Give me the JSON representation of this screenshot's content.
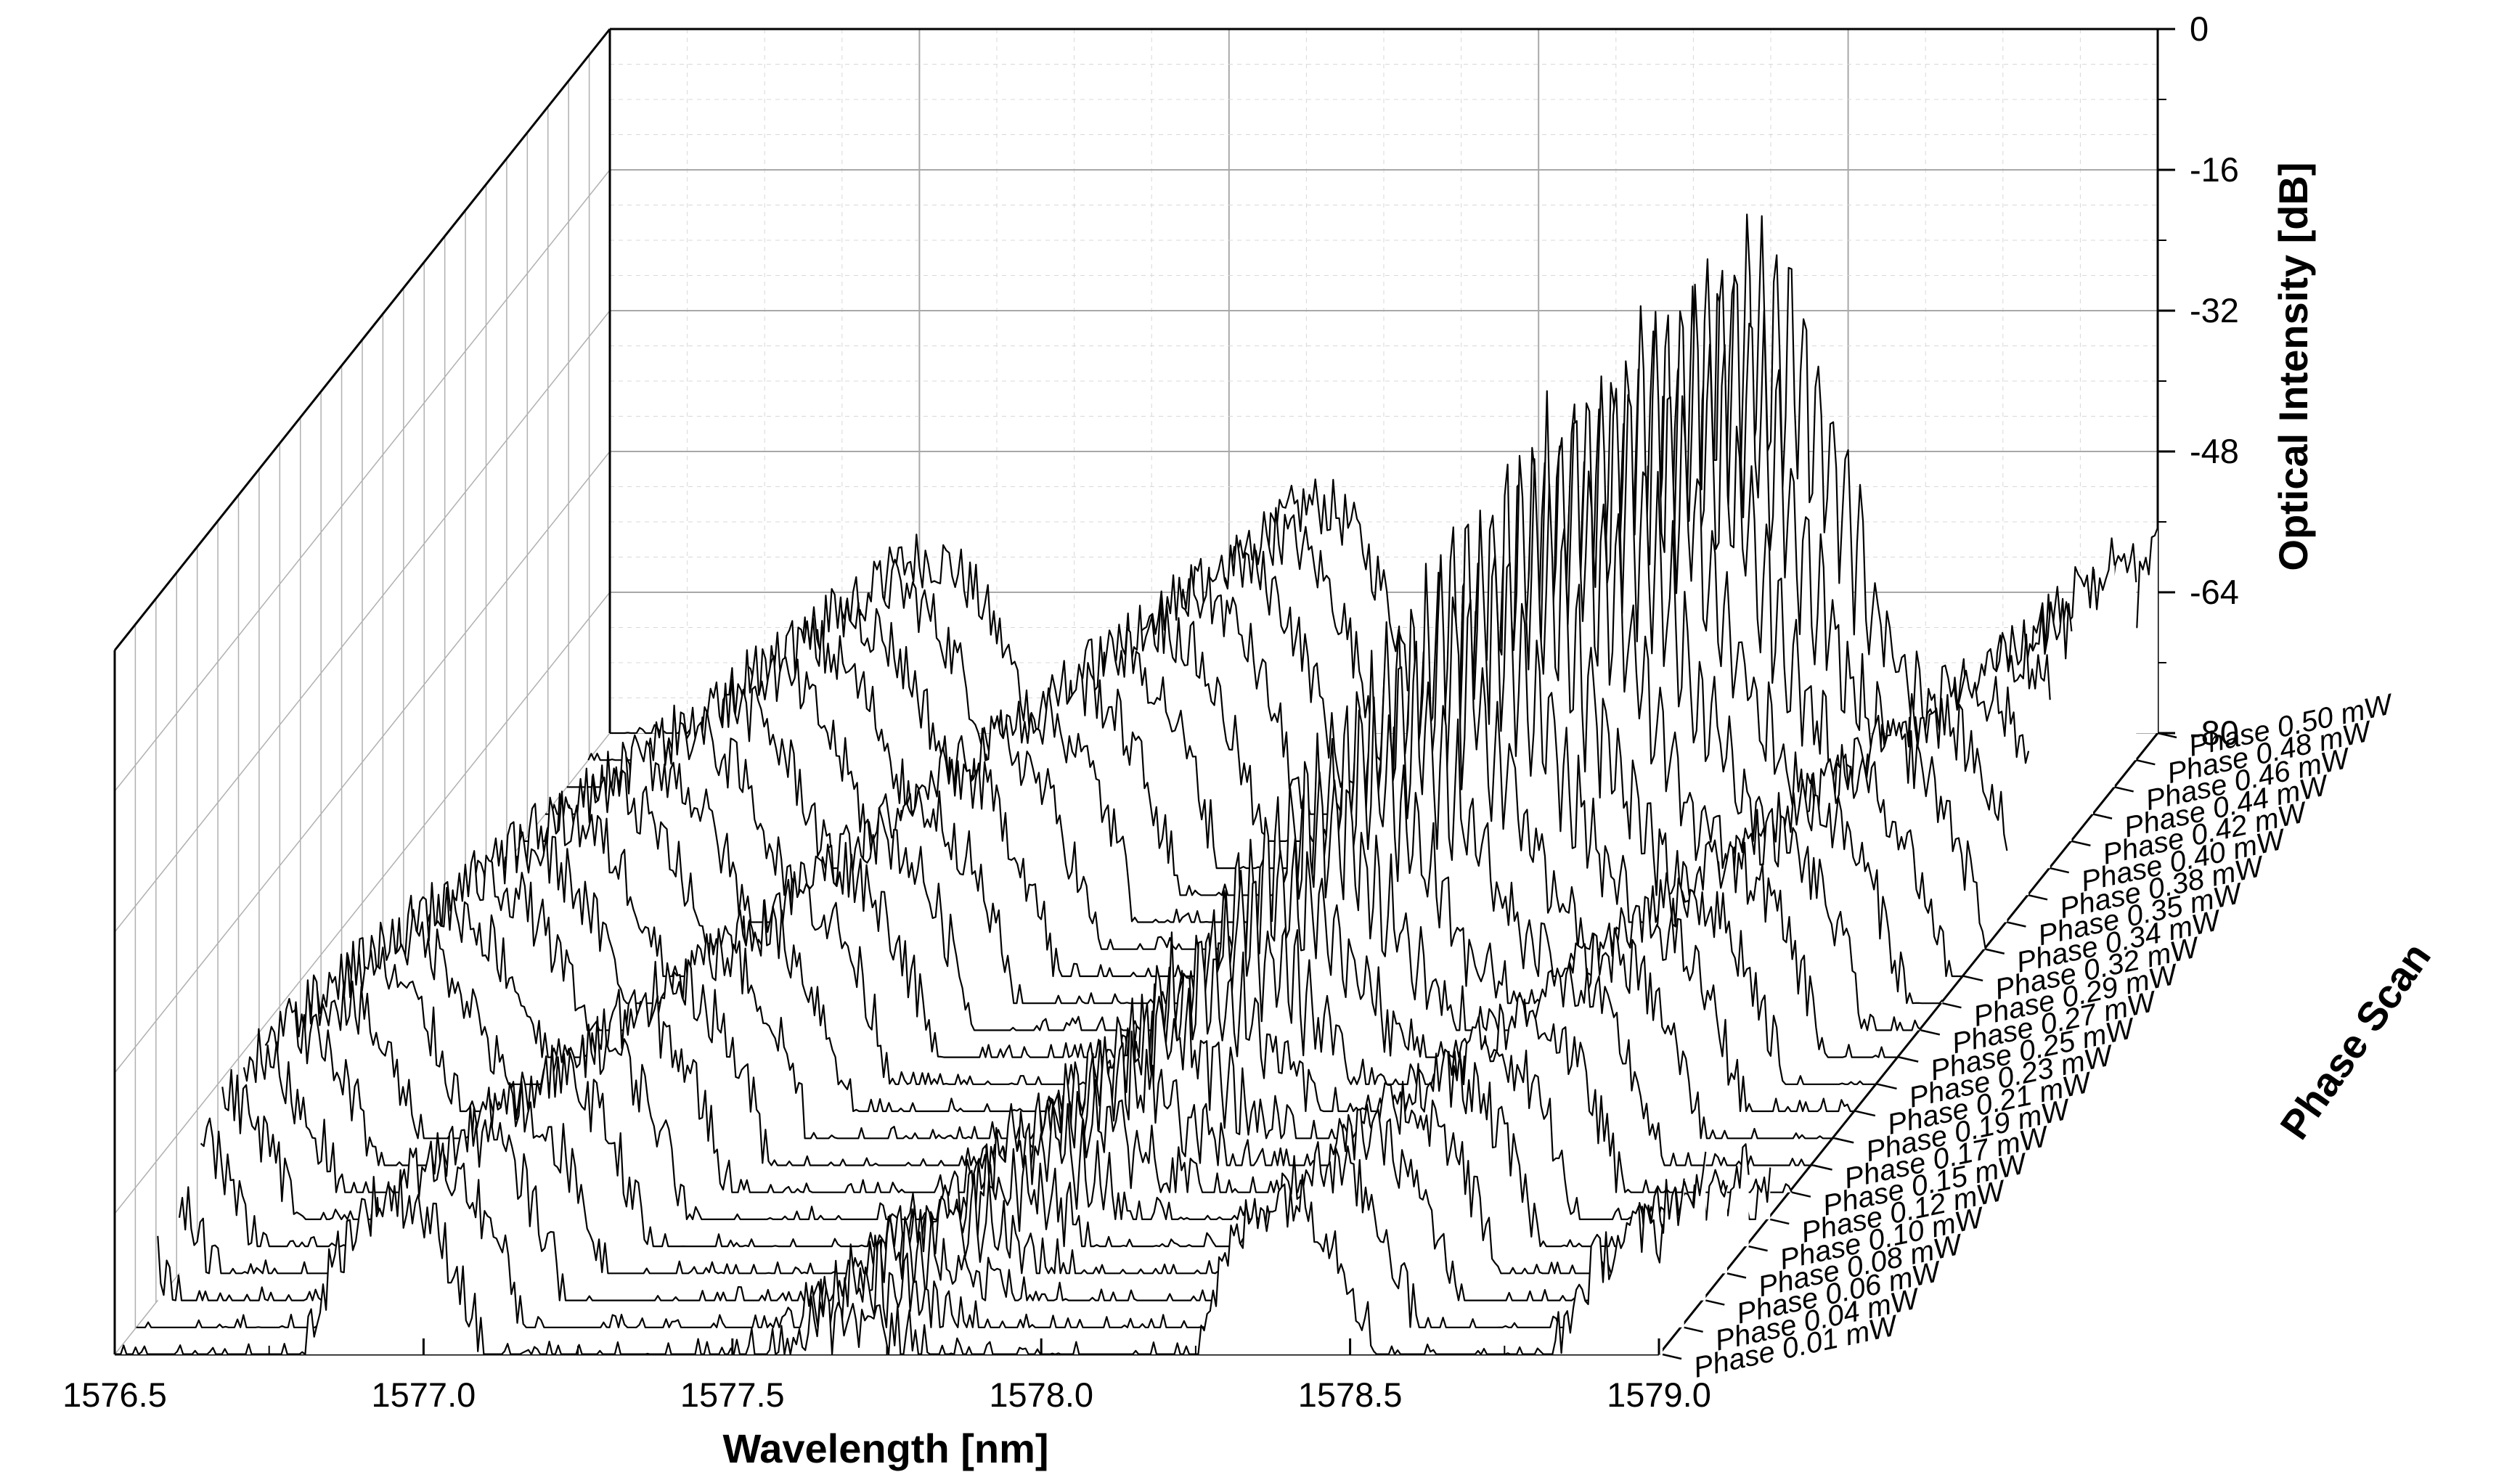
{
  "chart_data": {
    "type": "line",
    "projection": "3d-waterfall",
    "title": "",
    "xlabel": "Wavelength [nm]",
    "zlabel": "Optical Intensity [dB]",
    "ylabel": "Phase Scan",
    "xlim": [
      1576.5,
      1579.0
    ],
    "zlim": [
      -80,
      0
    ],
    "x_ticks": [
      "1576.5",
      "1577.0",
      "1577.5",
      "1578.0",
      "1578.5",
      "1579.0"
    ],
    "z_ticks": [
      "0",
      "-16",
      "-32",
      "-48",
      "-64",
      "-80"
    ],
    "grid": true,
    "series": [
      {
        "name": "Phase  0.01 mW",
        "peak_x": 1577.67,
        "peak_db": -74
      },
      {
        "name": "Phase  0.04 mW",
        "peak_x": 1577.7,
        "peak_db": -73
      },
      {
        "name": "Phase  0.06 mW",
        "peak_x": 1577.73,
        "peak_db": -72
      },
      {
        "name": "Phase  0.08 mW",
        "peak_x": 1577.76,
        "peak_db": -71
      },
      {
        "name": "Phase  0.10 mW",
        "peak_x": 1577.79,
        "peak_db": -70
      },
      {
        "name": "Phase  0.12 mW",
        "peak_x": 1577.82,
        "peak_db": -69
      },
      {
        "name": "Phase  0.15 mW",
        "peak_x": 1577.85,
        "peak_db": -68
      },
      {
        "name": "Phase  0.17 mW",
        "peak_x": 1577.88,
        "peak_db": -66
      },
      {
        "name": "Phase  0.19 mW",
        "peak_x": 1577.91,
        "peak_db": -64
      },
      {
        "name": "Phase  0.21 mW",
        "peak_x": 1577.94,
        "peak_db": -61
      },
      {
        "name": "Phase  0.23 mW",
        "peak_x": 1577.97,
        "peak_db": -58
      },
      {
        "name": "Phase  0.25 mW",
        "peak_x": 1578.0,
        "peak_db": -54
      },
      {
        "name": "Phase  0.27 mW",
        "peak_x": 1578.03,
        "peak_db": -50
      },
      {
        "name": "Phase  0.29 mW",
        "peak_x": 1578.06,
        "peak_db": -46
      },
      {
        "name": "Phase  0.32 mW",
        "peak_x": 1578.09,
        "peak_db": -42
      },
      {
        "name": "Phase  0.34 mW",
        "peak_x": 1578.12,
        "peak_db": -38
      },
      {
        "name": "Phase  0.35 mW",
        "peak_x": 1578.15,
        "peak_db": -34
      },
      {
        "name": "Phase  0.38 mW",
        "peak_x": 1578.18,
        "peak_db": -31
      },
      {
        "name": "Phase  0.40 mW",
        "peak_x": 1578.21,
        "peak_db": -28
      },
      {
        "name": "Phase  0.42 mW",
        "peak_x": 1578.24,
        "peak_db": -26
      },
      {
        "name": "Phase  0.44 mW",
        "peak_x": 1578.27,
        "peak_db": -25
      },
      {
        "name": "Phase  0.46 mW",
        "peak_x": 1578.3,
        "peak_db": -24
      },
      {
        "name": "Phase  0.48 mW",
        "peak_x": 1578.33,
        "peak_db": -23
      },
      {
        "name": "Phase  0.50 mW",
        "peak_x": 1578.36,
        "peak_db": -22
      }
    ]
  }
}
